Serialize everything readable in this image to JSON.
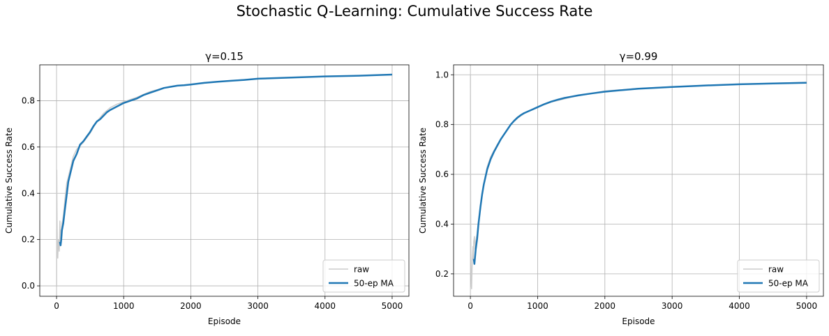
{
  "figure": {
    "suptitle": "Stochastic Q-Learning: Cumulative Success Rate"
  },
  "chart_data": [
    {
      "type": "line",
      "title": "γ=0.15",
      "xlabel": "Episode",
      "ylabel": "Cumulative Success Rate",
      "xlim": [
        -250,
        5250
      ],
      "ylim": [
        -0.045,
        0.955
      ],
      "xticks": [
        0,
        1000,
        2000,
        3000,
        4000,
        5000
      ],
      "xtick_labels": [
        "0",
        "1000",
        "2000",
        "3000",
        "4000",
        "5000"
      ],
      "yticks": [
        0.0,
        0.2,
        0.4,
        0.6,
        0.8
      ],
      "ytick_labels": [
        "0.0",
        "0.2",
        "0.4",
        "0.6",
        "0.8"
      ],
      "grid": true,
      "legend_position": "lower-right",
      "series": [
        {
          "name": "raw",
          "color": "#cccccc",
          "x": [
            1,
            3,
            6,
            10,
            14,
            18,
            22,
            26,
            30,
            35,
            40,
            45,
            50,
            55,
            60,
            70,
            80,
            90,
            100,
            120,
            150,
            200,
            250,
            300,
            400,
            500,
            600,
            700,
            800,
            900,
            1000,
            1200,
            1400,
            1600,
            1800,
            2000,
            2500,
            3000,
            3500,
            4000,
            4500,
            5000
          ],
          "y": [
            0.0,
            0.5,
            0.33,
            0.2,
            0.14,
            0.12,
            0.16,
            0.19,
            0.2,
            0.17,
            0.15,
            0.2,
            0.28,
            0.18,
            0.24,
            0.24,
            0.27,
            0.28,
            0.3,
            0.36,
            0.44,
            0.5,
            0.56,
            0.59,
            0.62,
            0.66,
            0.71,
            0.745,
            0.77,
            0.785,
            0.795,
            0.815,
            0.84,
            0.855,
            0.865,
            0.87,
            0.885,
            0.895,
            0.9,
            0.905,
            0.908,
            0.912
          ]
        },
        {
          "name": "50-ep MA",
          "color": "#1f77b4",
          "x": [
            50,
            60,
            70,
            80,
            100,
            120,
            150,
            175,
            200,
            250,
            300,
            350,
            400,
            450,
            500,
            550,
            600,
            650,
            700,
            750,
            800,
            900,
            1000,
            1100,
            1200,
            1300,
            1400,
            1500,
            1600,
            1700,
            1800,
            1900,
            2000,
            2200,
            2400,
            2600,
            2800,
            3000,
            3500,
            4000,
            4500,
            5000
          ],
          "y": [
            0.19,
            0.175,
            0.2,
            0.24,
            0.27,
            0.32,
            0.39,
            0.45,
            0.48,
            0.54,
            0.57,
            0.61,
            0.625,
            0.645,
            0.665,
            0.69,
            0.71,
            0.72,
            0.735,
            0.75,
            0.76,
            0.775,
            0.79,
            0.8,
            0.81,
            0.825,
            0.835,
            0.845,
            0.855,
            0.86,
            0.865,
            0.867,
            0.87,
            0.877,
            0.882,
            0.886,
            0.89,
            0.895,
            0.9,
            0.905,
            0.908,
            0.913
          ]
        }
      ]
    },
    {
      "type": "line",
      "title": "γ=0.99",
      "xlabel": "Episode",
      "ylabel": "Cumulative Success Rate",
      "xlim": [
        -250,
        5250
      ],
      "ylim": [
        0.11,
        1.04
      ],
      "xticks": [
        0,
        1000,
        2000,
        3000,
        4000,
        5000
      ],
      "xtick_labels": [
        "0",
        "1000",
        "2000",
        "3000",
        "4000",
        "5000"
      ],
      "yticks": [
        0.2,
        0.4,
        0.6,
        0.8,
        1.0
      ],
      "ytick_labels": [
        "0.2",
        "0.4",
        "0.6",
        "0.8",
        "1.0"
      ],
      "grid": true,
      "legend_position": "lower-right",
      "series": [
        {
          "name": "raw",
          "color": "#cccccc",
          "x": [
            1,
            3,
            6,
            10,
            14,
            18,
            22,
            26,
            30,
            35,
            40,
            45,
            50,
            60,
            70,
            80,
            100,
            120,
            150,
            200,
            250,
            300,
            400,
            500,
            600,
            700,
            800,
            1000,
            1200,
            1500,
            2000,
            2500,
            3000,
            3500,
            4000,
            4500,
            5000
          ],
          "y": [
            1.0,
            0.5,
            0.33,
            0.2,
            0.15,
            0.14,
            0.19,
            0.23,
            0.26,
            0.29,
            0.31,
            0.26,
            0.33,
            0.35,
            0.3,
            0.33,
            0.36,
            0.41,
            0.47,
            0.56,
            0.63,
            0.67,
            0.72,
            0.76,
            0.8,
            0.825,
            0.845,
            0.87,
            0.89,
            0.91,
            0.935,
            0.945,
            0.952,
            0.957,
            0.962,
            0.966,
            0.97
          ]
        },
        {
          "name": "50-ep MA",
          "color": "#1f77b4",
          "x": [
            50,
            60,
            70,
            80,
            100,
            120,
            150,
            175,
            200,
            250,
            300,
            350,
            400,
            450,
            500,
            550,
            600,
            650,
            700,
            750,
            800,
            900,
            1000,
            1100,
            1200,
            1300,
            1400,
            1500,
            1600,
            1800,
            2000,
            2200,
            2500,
            3000,
            3500,
            4000,
            4500,
            5000
          ],
          "y": [
            0.26,
            0.24,
            0.27,
            0.3,
            0.34,
            0.4,
            0.47,
            0.52,
            0.56,
            0.62,
            0.66,
            0.69,
            0.715,
            0.74,
            0.76,
            0.78,
            0.8,
            0.815,
            0.828,
            0.838,
            0.846,
            0.858,
            0.87,
            0.882,
            0.892,
            0.9,
            0.907,
            0.912,
            0.917,
            0.925,
            0.932,
            0.937,
            0.944,
            0.951,
            0.957,
            0.962,
            0.965,
            0.968
          ]
        }
      ]
    }
  ]
}
